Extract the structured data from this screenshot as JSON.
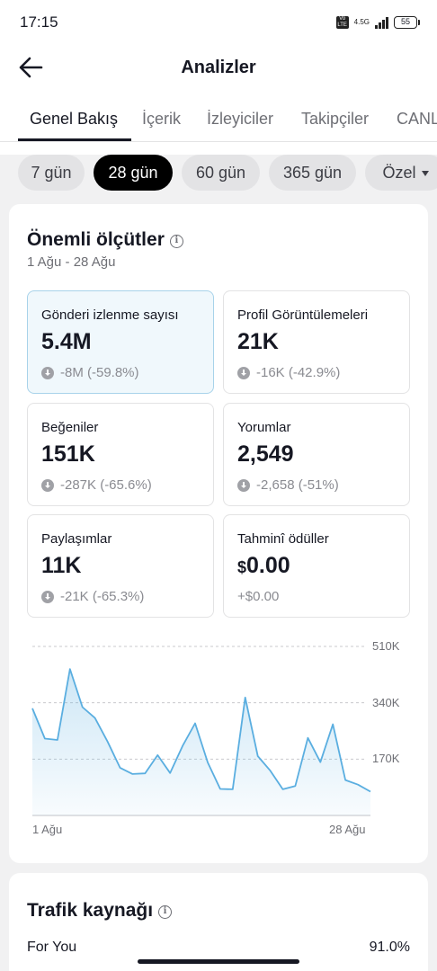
{
  "status_bar": {
    "time": "17:15",
    "network": "4.5G",
    "battery": "55"
  },
  "header": {
    "title": "Analizler"
  },
  "tabs": [
    {
      "label": "Genel Bakış",
      "active": true
    },
    {
      "label": "İçerik",
      "active": false
    },
    {
      "label": "İzleyiciler",
      "active": false
    },
    {
      "label": "Takipçiler",
      "active": false
    },
    {
      "label": "CANLI",
      "active": false
    }
  ],
  "periods": [
    {
      "label": "7 gün",
      "active": false
    },
    {
      "label": "28 gün",
      "active": true
    },
    {
      "label": "60 gün",
      "active": false
    },
    {
      "label": "365 gün",
      "active": false
    },
    {
      "label": "Özel",
      "active": false
    }
  ],
  "key_metrics": {
    "title": "Önemli ölçütler",
    "date_range": "1 Ağu - 28 Ağu",
    "items": [
      {
        "label": "Gönderi izlenme sayısı",
        "value": "5.4M",
        "change": "-8M (-59.8%)",
        "selected": true
      },
      {
        "label": "Profil Görüntülemeleri",
        "value": "21K",
        "change": "-16K (-42.9%)"
      },
      {
        "label": "Beğeniler",
        "value": "151K",
        "change": "-287K (-65.6%)"
      },
      {
        "label": "Yorumlar",
        "value": "2,549",
        "change": "-2,658 (-51%)"
      },
      {
        "label": "Paylaşımlar",
        "value": "11K",
        "change": "-21K (-65.3%)"
      },
      {
        "label": "Tahminî ödüller",
        "currency": "$",
        "value": "0.00",
        "change": "+$0.00"
      }
    ]
  },
  "chart_data": {
    "type": "area",
    "x_labels": [
      "1 Ağu",
      "28 Ağu"
    ],
    "y_ticks": [
      "510K",
      "340K",
      "170K"
    ],
    "ylim": [
      0,
      510000
    ],
    "grid": true,
    "color": "#5aaee0",
    "values": [
      323000,
      232000,
      228000,
      442000,
      327000,
      294000,
      223000,
      144000,
      125000,
      127000,
      182000,
      128000,
      210000,
      278000,
      160000,
      80000,
      79000,
      356000,
      179000,
      135000,
      79000,
      89000,
      234000,
      161000,
      275000,
      107000,
      93000,
      72000
    ]
  },
  "traffic": {
    "title": "Trafik kaynağı",
    "first_row": {
      "label": "For You",
      "value": "91.0%"
    }
  }
}
